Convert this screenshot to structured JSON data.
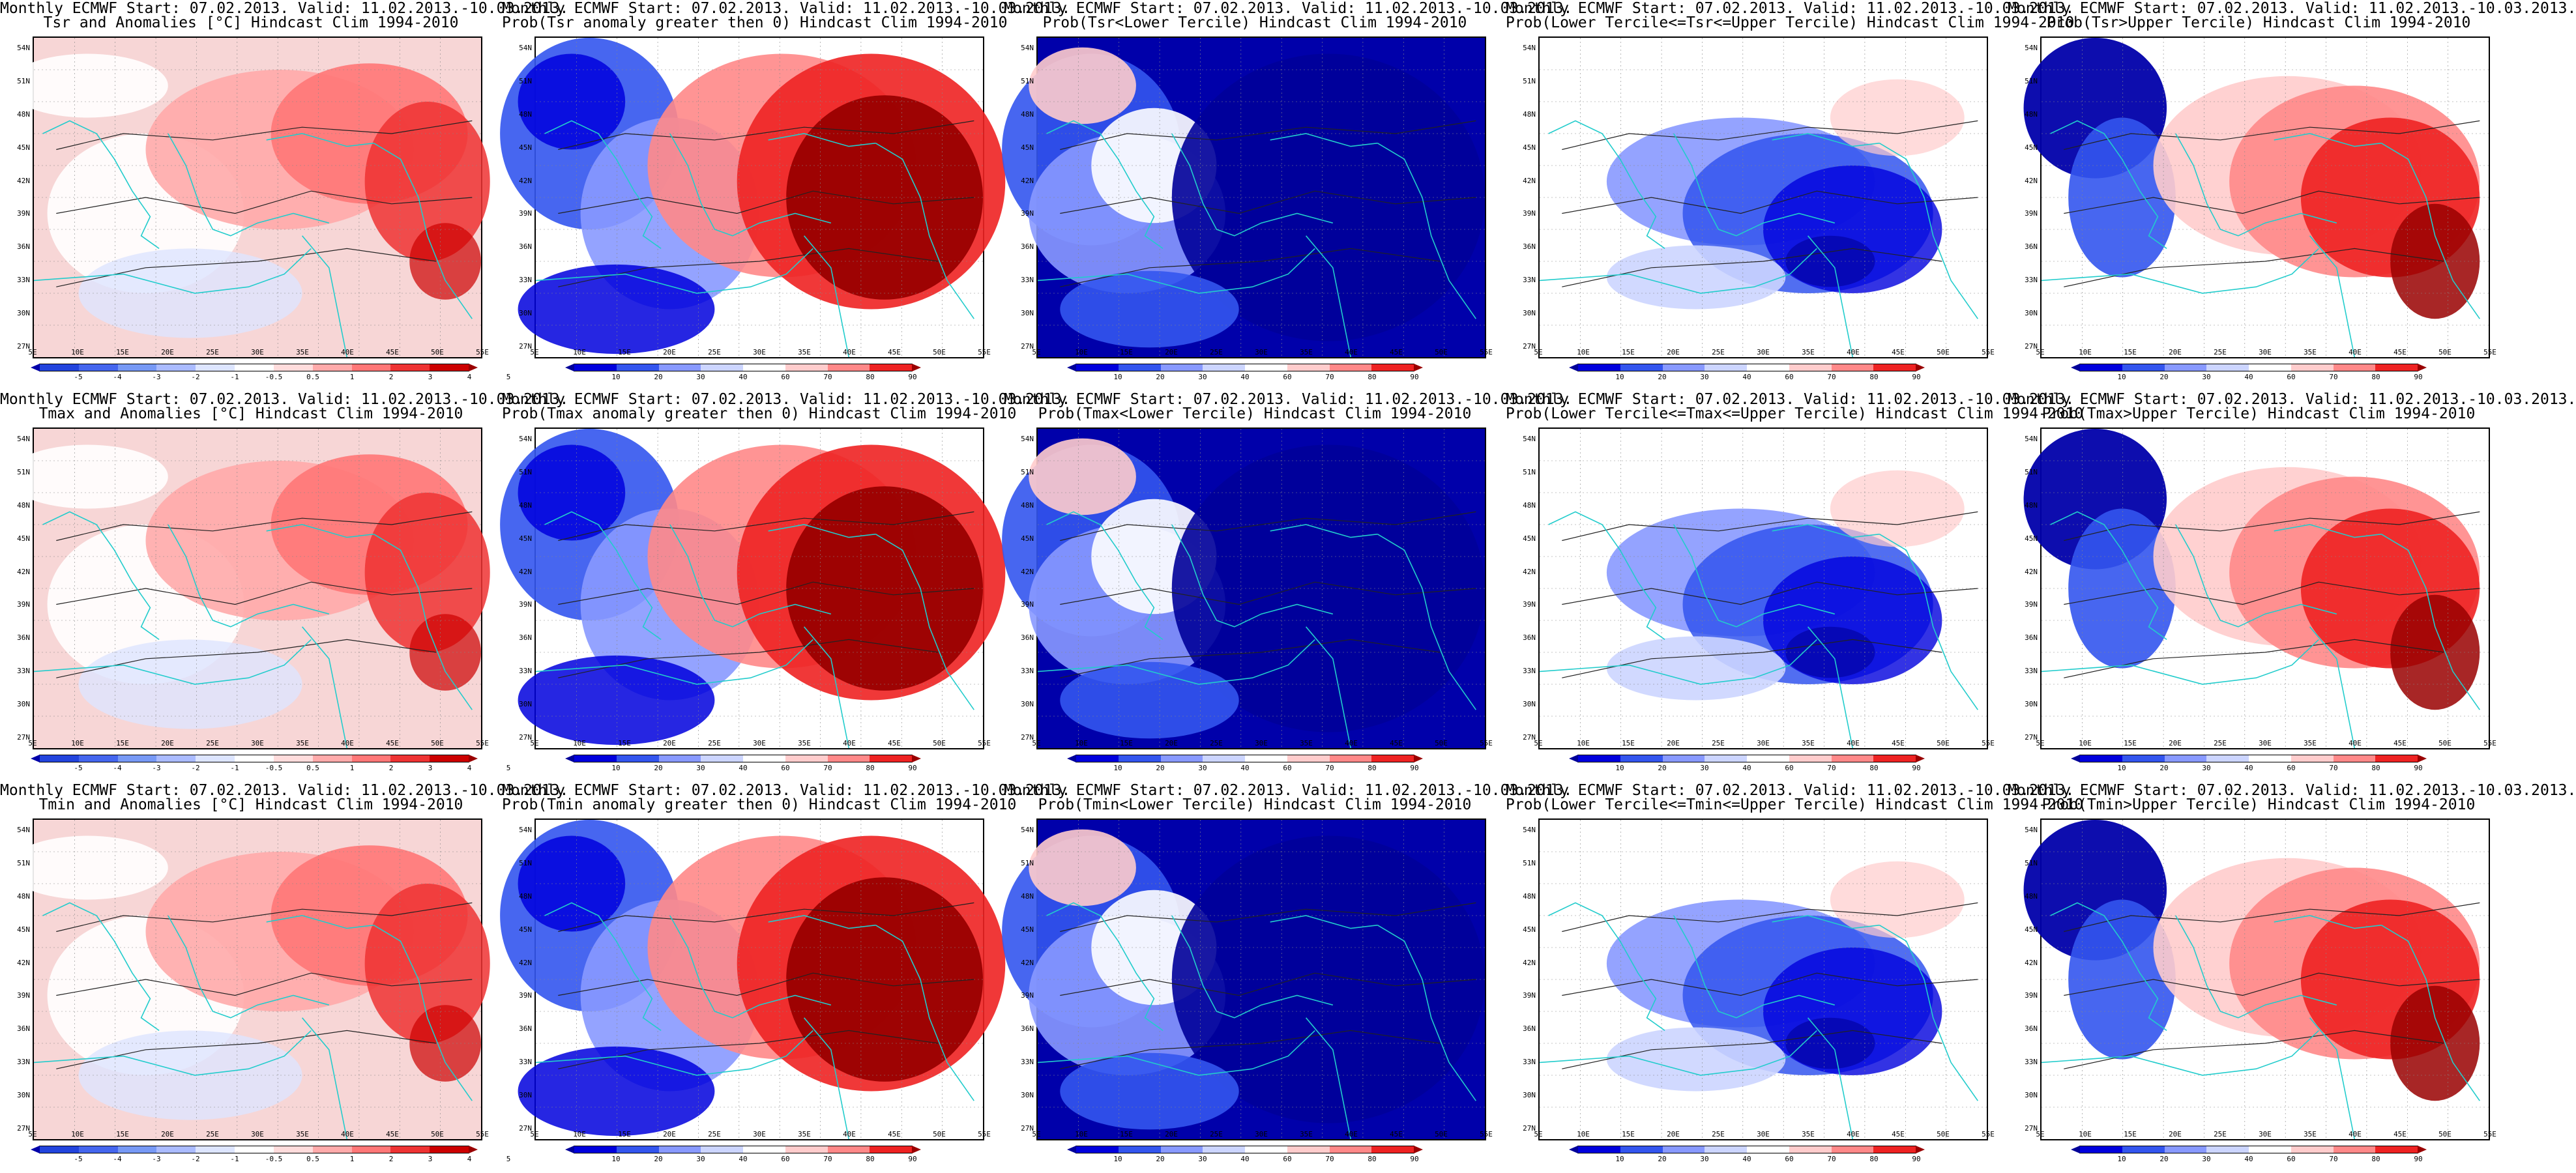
{
  "grid_labels": {
    "lat": [
      "54N",
      "51N",
      "48N",
      "45N",
      "42N",
      "39N",
      "36N",
      "33N",
      "30N",
      "27N"
    ],
    "lon": [
      "5E",
      "10E",
      "15E",
      "20E",
      "25E",
      "30E",
      "35E",
      "40E",
      "45E",
      "50E",
      "55E"
    ]
  },
  "colorbars": {
    "anomaly": {
      "ticks": [
        "-5",
        "-4",
        "-3",
        "-2",
        "-1",
        "-0.5",
        "0.5",
        "1",
        "2",
        "3",
        "4",
        "5"
      ],
      "colors": [
        "#0000aa",
        "#2244dd",
        "#4466ee",
        "#7799f5",
        "#aabbff",
        "#dde5ff",
        "#ffffff",
        "#ffdcdc",
        "#ffaaaa",
        "#ff7777",
        "#ee3333",
        "#cc0000",
        "#990000"
      ]
    },
    "probability": {
      "ticks": [
        "10",
        "20",
        "30",
        "40",
        "60",
        "70",
        "80",
        "90"
      ],
      "colors": [
        "#000099",
        "#0000dd",
        "#3355ee",
        "#8899ff",
        "#ccd5ff",
        "#ffffff",
        "#ffcccc",
        "#ff8888",
        "#ee2222",
        "#990000"
      ]
    }
  },
  "rows": [
    {
      "variable": "Tsr",
      "panels": [
        {
          "line1": "Monthly ECMWF Start: 07.02.2013. Valid: 11.02.2013.-10.03.2013.",
          "line2": "Tsr and Anomalies [°C] Hindcast Clim 1994-2010",
          "colorbar": "anomaly",
          "pattern": "anom"
        },
        {
          "line1": "Monthly ECMWF Start: 07.02.2013. Valid: 11.02.2013.-10.03.2013.",
          "line2": "Prob(Tsr anomaly greater then 0) Hindcast Clim 1994-2010",
          "colorbar": "probability",
          "pattern": "pos"
        },
        {
          "line1": "Monthly ECMWF Start: 07.02.2013. Valid: 11.02.2013.-10.03.2013.",
          "line2": "Prob(Tsr<Lower Tercile) Hindcast Clim 1994-2010",
          "colorbar": "probability",
          "pattern": "lower"
        },
        {
          "line1": "Monthly ECMWF Start: 07.02.2013. Valid: 11.02.2013.-10.03.2013.",
          "line2": "Prob(Lower Tercile<=Tsr<=Upper Tercile) Hindcast Clim 1994-2010",
          "colorbar": "probability",
          "pattern": "middle"
        },
        {
          "line1": "Monthly ECMWF Start: 07.02.2013. Valid: 11.02.2013.-10.03.2013.",
          "line2": "Prob(Tsr>Upper Tercile) Hindcast Clim 1994-2010",
          "colorbar": "probability",
          "pattern": "upper"
        }
      ]
    },
    {
      "variable": "Tmax",
      "panels": [
        {
          "line1": "Monthly ECMWF Start: 07.02.2013. Valid: 11.02.2013.-10.03.2013.",
          "line2": "Tmax and Anomalies [°C] Hindcast Clim 1994-2010",
          "colorbar": "anomaly",
          "pattern": "anom"
        },
        {
          "line1": "Monthly ECMWF Start: 07.02.2013. Valid: 11.02.2013.-10.03.2013.",
          "line2": "Prob(Tmax anomaly greater then 0) Hindcast Clim 1994-2010",
          "colorbar": "probability",
          "pattern": "pos"
        },
        {
          "line1": "Monthly ECMWF Start: 07.02.2013. Valid: 11.02.2013.-10.03.2013.",
          "line2": "Prob(Tmax<Lower Tercile) Hindcast Clim 1994-2010",
          "colorbar": "probability",
          "pattern": "lower"
        },
        {
          "line1": "Monthly ECMWF Start: 07.02.2013. Valid: 11.02.2013.-10.03.2013.",
          "line2": "Prob(Lower Tercile<=Tmax<=Upper Tercile) Hindcast Clim 1994-2010",
          "colorbar": "probability",
          "pattern": "middle"
        },
        {
          "line1": "Monthly ECMWF Start: 07.02.2013. Valid: 11.02.2013.-10.03.2013.",
          "line2": "Prob(Tmax>Upper Tercile) Hindcast Clim 1994-2010",
          "colorbar": "probability",
          "pattern": "upper"
        }
      ]
    },
    {
      "variable": "Tmin",
      "panels": [
        {
          "line1": "Monthly ECMWF Start: 07.02.2013. Valid: 11.02.2013.-10.03.2013.",
          "line2": "Tmin and Anomalies [°C] Hindcast Clim 1994-2010",
          "colorbar": "anomaly",
          "pattern": "anom"
        },
        {
          "line1": "Monthly ECMWF Start: 07.02.2013. Valid: 11.02.2013.-10.03.2013.",
          "line2": "Prob(Tmin anomaly greater then 0) Hindcast Clim 1994-2010",
          "colorbar": "probability",
          "pattern": "pos"
        },
        {
          "line1": "Monthly ECMWF Start: 07.02.2013. Valid: 11.02.2013.-10.03.2013.",
          "line2": "Prob(Tmin<Lower Tercile) Hindcast Clim 1994-2010",
          "colorbar": "probability",
          "pattern": "lower"
        },
        {
          "line1": "Monthly ECMWF Start: 07.02.2013. Valid: 11.02.2013.-10.03.2013.",
          "line2": "Prob(Lower Tercile<=Tmin<=Upper Tercile) Hindcast Clim 1994-2010",
          "colorbar": "probability",
          "pattern": "middle"
        },
        {
          "line1": "Monthly ECMWF Start: 07.02.2013. Valid: 11.02.2013.-10.03.2013.",
          "line2": "Prob(Tmin>Upper Tercile) Hindcast Clim 1994-2010",
          "colorbar": "probability",
          "pattern": "upper"
        }
      ]
    }
  ]
}
